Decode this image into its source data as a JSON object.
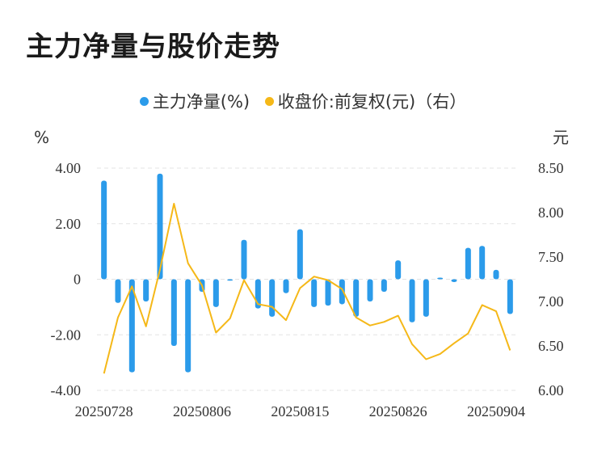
{
  "title": "主力净量与股价走势",
  "legend": [
    {
      "label": "主力净量(%)",
      "color": "#2b9bea"
    },
    {
      "label": "收盘价:前复权(元)（右）",
      "color": "#f5b818"
    }
  ],
  "chart_data": {
    "type": "bar+line",
    "left_unit": "%",
    "right_unit": "元",
    "yticks_left": [
      "4.00",
      "2.00",
      "0",
      "-2.00",
      "-4.00"
    ],
    "yticks_right": [
      "8.50",
      "8.00",
      "7.50",
      "7.00",
      "6.50",
      "6.00"
    ],
    "ylim_left": [
      -4,
      4
    ],
    "ylim_right": [
      6.0,
      8.5
    ],
    "xtick_labels": [
      "20250728",
      "20250806",
      "20250815",
      "20250826",
      "20250904"
    ],
    "xtick_indices": [
      0,
      7,
      14,
      21,
      28
    ],
    "series": [
      {
        "name": "主力净量(%)",
        "type": "bar",
        "color": "#2b9bea",
        "values": [
          3.55,
          -0.85,
          -3.35,
          -0.8,
          3.8,
          -2.4,
          -3.35,
          -0.45,
          -1.0,
          -0.05,
          1.42,
          -1.05,
          -1.35,
          -0.5,
          1.8,
          -1.0,
          -0.95,
          -0.9,
          -1.35,
          -0.8,
          -0.45,
          0.68,
          -1.55,
          -1.35,
          0.06,
          -0.1,
          1.13,
          1.2,
          0.34,
          -1.25
        ]
      },
      {
        "name": "收盘价:前复权(元)（右）",
        "type": "line",
        "color": "#f5b818",
        "values": [
          6.19,
          6.82,
          7.17,
          6.72,
          7.36,
          8.1,
          7.43,
          7.18,
          6.65,
          6.81,
          7.24,
          6.97,
          6.94,
          6.79,
          7.15,
          7.28,
          7.24,
          7.14,
          6.82,
          6.73,
          6.77,
          6.84,
          6.52,
          6.35,
          6.41,
          6.53,
          6.64,
          6.96,
          6.89,
          6.45
        ]
      }
    ]
  }
}
